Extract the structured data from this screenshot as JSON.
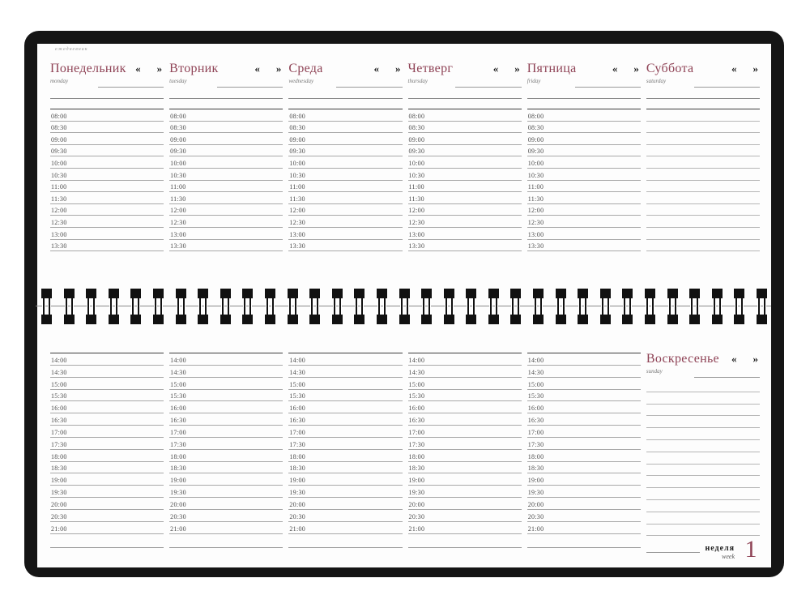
{
  "page": {
    "brand": "ежедневник"
  },
  "colors": {
    "accent": "#8f4356",
    "cover": "#151515",
    "rule_line": "#a8a8a8",
    "dark_rule": "#3c3c3c",
    "time_text": "#4a4a4a",
    "subtitle_text": "#777777"
  },
  "chevrons": {
    "prev": "«",
    "next": "»"
  },
  "days": [
    {
      "name": "Понедельник",
      "en": "monday"
    },
    {
      "name": "Вторник",
      "en": "tuesday"
    },
    {
      "name": "Среда",
      "en": "wednesday"
    },
    {
      "name": "Четверг",
      "en": "thursday"
    },
    {
      "name": "Пятница",
      "en": "friday"
    },
    {
      "name": "Суббота",
      "en": "saturday"
    },
    {
      "name": "Воскресенье",
      "en": "sunday"
    }
  ],
  "morning_times": [
    "08:00",
    "08:30",
    "09:00",
    "09:30",
    "10:00",
    "10:30",
    "11:00",
    "11:30",
    "12:00",
    "12:30",
    "13:00",
    "13:30"
  ],
  "evening_times": [
    "14:00",
    "14:30",
    "15:00",
    "15:30",
    "16:00",
    "16:30",
    "17:00",
    "17:30",
    "18:00",
    "18:30",
    "19:00",
    "19:30",
    "20:00",
    "20:30",
    "21:00"
  ],
  "layout": {
    "saturday_blank_rows": 12,
    "sunday_blank_rows": 13
  },
  "footer": {
    "week_ru": "неделя",
    "week_en": "week",
    "week_number": "1"
  },
  "binding": {
    "loop_count": 33
  }
}
